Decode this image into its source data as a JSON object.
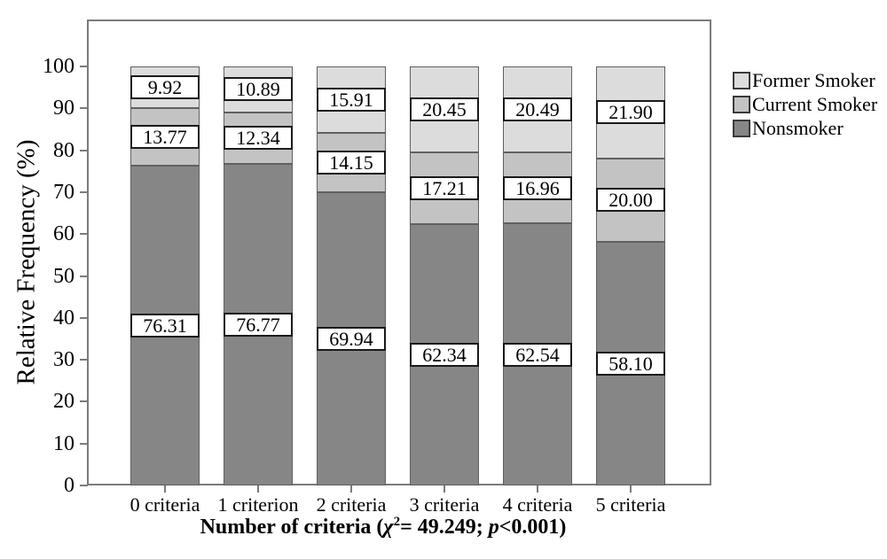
{
  "chart_data": {
    "type": "bar",
    "stacked": true,
    "title": "",
    "ylabel": "Relative Frequency (%)",
    "xlabel_parts": {
      "pre": "Number of criteria (",
      "chi": "χ",
      "chi_sup": "2",
      "eq": "= 49.249; ",
      "p_var": "p",
      "post": "<0.001)"
    },
    "categories": [
      "0 criteria",
      "1 criterion",
      "2 criteria",
      "3 criteria",
      "4 criteria",
      "5 criteria"
    ],
    "series": [
      {
        "name": "Nonsmoker",
        "color": "#868686",
        "values": [
          76.31,
          76.77,
          69.94,
          62.34,
          62.54,
          58.1
        ],
        "labels": [
          "76.31",
          "76.77",
          "69.94",
          "62.34",
          "62.54",
          "58.10"
        ]
      },
      {
        "name": "Current Smoker",
        "color": "#c3c3c3",
        "values": [
          13.77,
          12.34,
          14.15,
          17.21,
          16.96,
          20.0
        ],
        "labels": [
          "13.77",
          "12.34",
          "14.15",
          "17.21",
          "16.96",
          "20.00"
        ]
      },
      {
        "name": "Former Smoker",
        "color": "#dcdcdc",
        "values": [
          9.92,
          10.89,
          15.91,
          20.45,
          20.49,
          21.9
        ],
        "labels": [
          "9.92",
          "10.89",
          "15.91",
          "20.45",
          "20.49",
          "21.90"
        ]
      }
    ],
    "legend_order": [
      "Former Smoker",
      "Current Smoker",
      "Nonsmoker"
    ],
    "legend_position": "right",
    "ylim": [
      0,
      100
    ],
    "yticks": [
      0,
      10,
      20,
      30,
      40,
      50,
      60,
      70,
      80,
      90,
      100
    ],
    "grid": false
  }
}
